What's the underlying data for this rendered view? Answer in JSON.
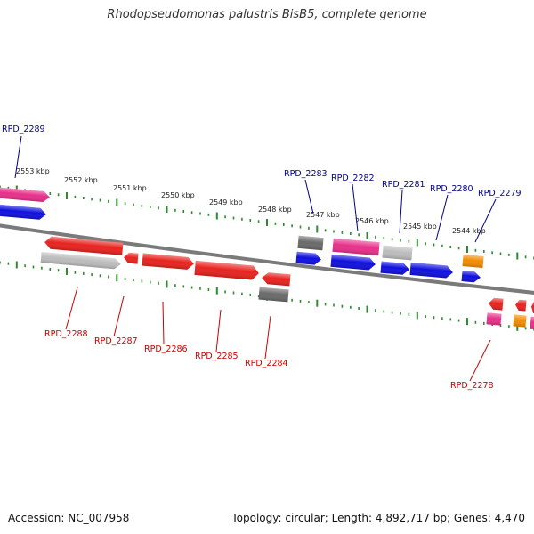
{
  "title": "Rhodopseudomonas palustris BisB5, complete genome",
  "footer": {
    "accession": "Accession: NC_007958",
    "summary": "Topology: circular; Length: 4,892,717 bp; Genes: 4,470"
  },
  "colors": {
    "backbone": "#7a7a7a",
    "tick": "#2e8b2e",
    "forward_label": "#00008b",
    "reverse_label": "#cc0000",
    "red": "#e8231f",
    "magenta": "#e8308a",
    "blue": "#1010e0",
    "gray": "#bcbcbc",
    "darkgray": "#6a6a6a",
    "orange": "#f28c00"
  },
  "kbp_labels": [
    "2553 kbp",
    "2552 kbp",
    "2551 kbp",
    "2550 kbp",
    "2549 kbp",
    "2548 kbp",
    "2547 kbp",
    "2546 kbp",
    "2545 kbp",
    "2544 kbp"
  ],
  "forward_labels": [
    "RPD_2289",
    "RPD_2283",
    "RPD_2282",
    "RPD_2281",
    "RPD_2280",
    "RPD_2279"
  ],
  "reverse_labels": [
    "RPD_2288",
    "RPD_2287",
    "RPD_2286",
    "RPD_2285",
    "RPD_2284",
    "RPD_2278"
  ]
}
